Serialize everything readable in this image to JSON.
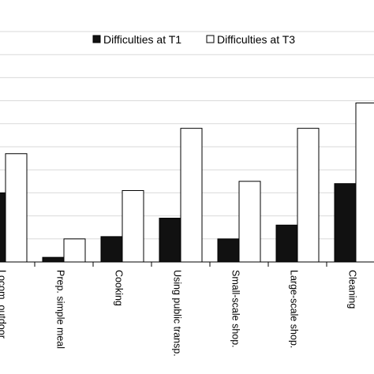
{
  "chart_data": {
    "type": "bar",
    "title": "",
    "xlabel": "",
    "ylabel": "",
    "categories": [
      "Locom. outdoor",
      "Prep. simple meal",
      "Cooking",
      "Using public transp.",
      "Small-scale shop.",
      "Large-scale shop.",
      "Cleaning"
    ],
    "series": [
      {
        "name": "Difficulties at T1",
        "values": [
          3.0,
          0.2,
          1.1,
          1.9,
          1.0,
          1.6,
          3.4
        ],
        "color": "#111111"
      },
      {
        "name": "Difficulties at T3",
        "values": [
          4.7,
          1.0,
          3.1,
          5.8,
          3.5,
          5.8,
          6.9
        ],
        "color": "#ffffff"
      }
    ],
    "ylim": [
      0,
      10
    ],
    "y_gridlines": [
      1,
      2,
      3,
      4,
      5,
      6,
      7,
      8,
      9,
      10
    ],
    "grid": true,
    "legend": "top"
  }
}
